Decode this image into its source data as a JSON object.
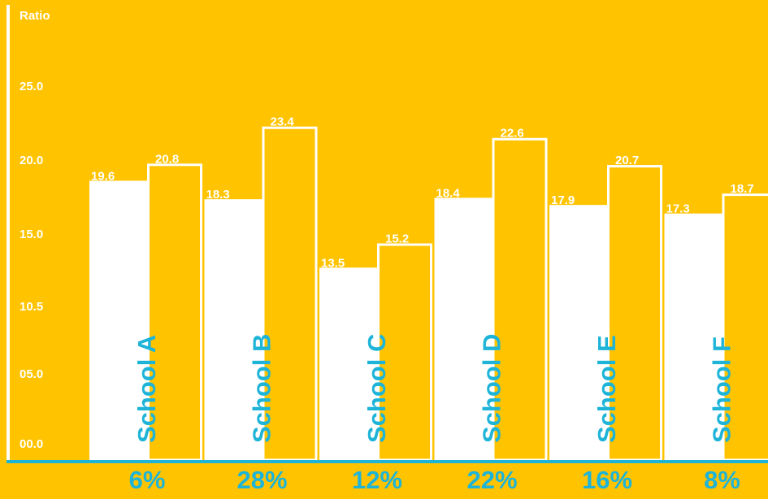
{
  "chart_data": {
    "type": "bar",
    "ylabel": "Ratio",
    "ylim": [
      0,
      30
    ],
    "yticks": [
      "00.0",
      "05.0",
      "10.5",
      "15.0",
      "20.0",
      "25.0"
    ],
    "categories": [
      "School A",
      "School B",
      "School C",
      "School D",
      "School E",
      "School F"
    ],
    "series": [
      {
        "values": [
          19.6,
          18.3,
          13.5,
          18.4,
          17.9,
          17.3
        ],
        "value_labels": [
          "19.6",
          "18.3",
          "13.5",
          "18.4",
          "17.9",
          "17.3"
        ],
        "style": "filled"
      },
      {
        "values": [
          20.8,
          23.4,
          15.2,
          22.6,
          20.7,
          18.7
        ],
        "value_labels": [
          "20.8",
          "23.4",
          "15.2",
          "22.6",
          "20.7",
          "18.7"
        ],
        "style": "outlined"
      }
    ],
    "percentages": [
      "6%",
      "28%",
      "12%",
      "22%",
      "16%",
      "8%"
    ],
    "grid": false,
    "legend": "none"
  },
  "colors": {
    "background": "#FFC300",
    "bar_fill": "#FFFFFF",
    "bar_outline": "#FFFFFF",
    "axis": "#FFFFFF",
    "baseline": "#1EB4D8",
    "category_text": "#1EB4D8",
    "tick_text": "#FFFFFF"
  }
}
